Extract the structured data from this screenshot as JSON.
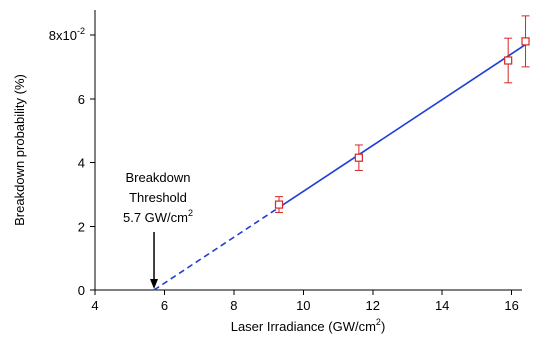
{
  "chart_data": {
    "type": "scatter",
    "xlabel": "Laser Irradiance (GW/cm",
    "xlabel_sup": "2",
    "xlabel_end": ")",
    "ylabel": "Breakdown probability (%)",
    "xlim": [
      4,
      16.5
    ],
    "ylim": [
      0,
      0.08
    ],
    "x_ticks": [
      4,
      6,
      8,
      10,
      12,
      14,
      16
    ],
    "x_tick_labels": [
      "4",
      "6",
      "8",
      "10",
      "12",
      "14",
      "16"
    ],
    "y_ticks": [
      0,
      0.02,
      0.04,
      0.06,
      0.08
    ],
    "y_tick_labels": [
      "0",
      "2",
      "4",
      "6",
      "8x10"
    ],
    "y_multiplier_sup": "-2",
    "series": [
      {
        "points": [
          {
            "x": 9.3,
            "y": 0.0268,
            "err_low": 0.0025,
            "err_high": 0.0025
          },
          {
            "x": 11.6,
            "y": 0.0415,
            "err_low": 0.004,
            "err_high": 0.004
          },
          {
            "x": 15.9,
            "y": 0.072,
            "err_low": 0.007,
            "err_high": 0.007
          },
          {
            "x": 16.4,
            "y": 0.078,
            "err_low": 0.008,
            "err_high": 0.008
          }
        ],
        "marker_color": "#d62728"
      }
    ],
    "fit_line": {
      "x_start": 5.7,
      "x_dash_end": 9.3,
      "x_end": 16.4,
      "y_start": 0.0,
      "y_end": 0.077,
      "color": "#1f3fd6"
    },
    "annotation": {
      "line1": "Breakdown",
      "line2": "Threshold",
      "line3": "5.7 GW/cm",
      "line3_sup": "2",
      "x_value": 5.7
    }
  }
}
